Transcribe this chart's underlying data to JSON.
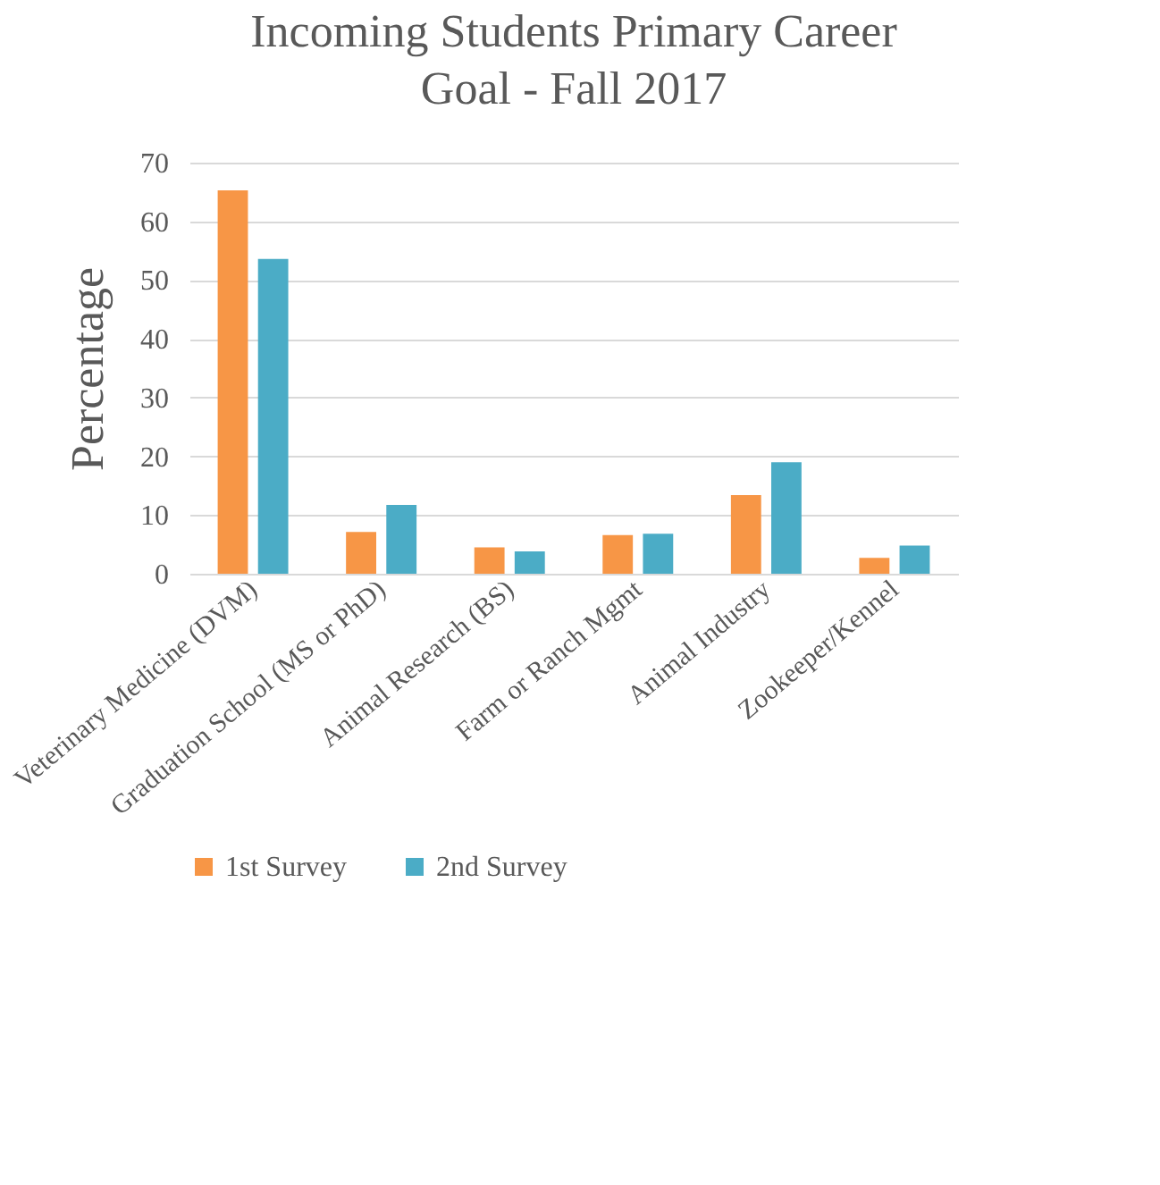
{
  "chart_data": {
    "type": "bar",
    "title": "Incoming Students Primary Career Goal - Fall 2017",
    "ylabel": "Percentage",
    "categories": [
      "Veterinary Medicine (DVM)",
      "Graduation School (MS or PhD)",
      "Animal Research (BS)",
      "Farm or Ranch Mgmt",
      "Animal Industry",
      "Zookeeper/Kennel"
    ],
    "series": [
      {
        "name": "1st Survey",
        "color": "#f79646",
        "values": [
          65.3,
          7.1,
          4.5,
          6.6,
          13.4,
          2.7
        ]
      },
      {
        "name": "2nd Survey",
        "color": "#4bacc6",
        "values": [
          53.6,
          11.7,
          3.8,
          6.8,
          19.0,
          4.8
        ]
      }
    ],
    "ylim": [
      0,
      70
    ],
    "yticks": [
      0,
      10,
      20,
      30,
      40,
      50,
      60,
      70
    ],
    "grid": "y",
    "legend": "bottom"
  }
}
